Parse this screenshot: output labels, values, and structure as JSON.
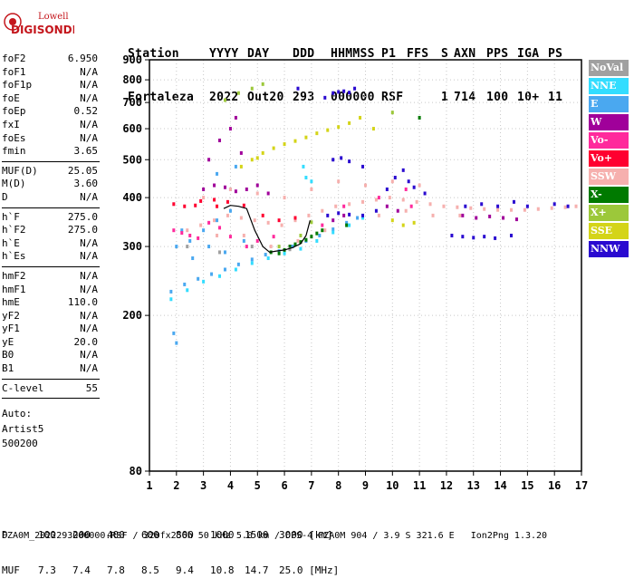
{
  "logo": {
    "line1": "Lowell",
    "line2": "DIGISONDE"
  },
  "header": {
    "labels": [
      "Station",
      "YYYY",
      "DAY",
      "DDD",
      "HHMMSS",
      "P1",
      "FFS",
      "S",
      "AXN",
      "PPS",
      "IGA",
      "PS"
    ],
    "values": [
      "Fortaleza",
      "2022",
      "Out20",
      "293",
      "000000",
      "RSF",
      "",
      "1",
      "714",
      "100",
      "10+",
      "11"
    ]
  },
  "params": [
    {
      "name": "foF2",
      "value": "6.950"
    },
    {
      "name": "foF1",
      "value": "N/A"
    },
    {
      "name": "foF1p",
      "value": "N/A"
    },
    {
      "name": "foE",
      "value": "N/A"
    },
    {
      "name": "foEp",
      "value": "0.52"
    },
    {
      "name": "fxI",
      "value": "N/A"
    },
    {
      "name": "foEs",
      "value": "N/A"
    },
    {
      "name": "fmin",
      "value": "3.65"
    },
    {
      "name": "MUF(D)",
      "value": "25.05"
    },
    {
      "name": "M(D)",
      "value": "3.60"
    },
    {
      "name": "D",
      "value": "N/A"
    },
    {
      "name": "h`F",
      "value": "275.0"
    },
    {
      "name": "h`F2",
      "value": "275.0"
    },
    {
      "name": "h`E",
      "value": "N/A"
    },
    {
      "name": "h`Es",
      "value": "N/A"
    },
    {
      "name": "hmF2",
      "value": "N/A"
    },
    {
      "name": "hmF1",
      "value": "N/A"
    },
    {
      "name": "hmE",
      "value": "110.0"
    },
    {
      "name": "yF2",
      "value": "N/A"
    },
    {
      "name": "yF1",
      "value": "N/A"
    },
    {
      "name": "yE",
      "value": "20.0"
    },
    {
      "name": "B0",
      "value": "N/A"
    },
    {
      "name": "B1",
      "value": "N/A"
    },
    {
      "name": "C-level",
      "value": "55"
    }
  ],
  "auto": {
    "line1": "Auto:",
    "line2": "Artist5",
    "line3": "500200"
  },
  "legend": [
    {
      "label": "NoVal",
      "color": "#a0a0a0"
    },
    {
      "label": "NNE",
      "color": "#33ddff"
    },
    {
      "label": "E",
      "color": "#4aa8f0"
    },
    {
      "label": "W",
      "color": "#a0009a"
    },
    {
      "label": "Vo-",
      "color": "#ff2a9c"
    },
    {
      "label": "Vo+",
      "color": "#ff0030"
    },
    {
      "label": "SSW",
      "color": "#f6b0ae"
    },
    {
      "label": "X-",
      "color": "#007a00"
    },
    {
      "label": "X+",
      "color": "#9cc83a"
    },
    {
      "label": "SSE",
      "color": "#d4d418"
    },
    {
      "label": "NNW",
      "color": "#2a0ad0"
    }
  ],
  "freq_table": {
    "row1_label": "D",
    "row1": [
      "100",
      "200",
      "400",
      "600",
      "800",
      "1000",
      "1500",
      "3000 [km]"
    ],
    "row2_label": "MUF",
    "row2": [
      "7.3",
      "7.4",
      "7.8",
      "8.5",
      "9.4",
      "10.8",
      "14.7",
      "25.0 [MHz]"
    ]
  },
  "footer": "FZA0M_2022293000000.RSF / 320fx256h 50 kHz 5.0 km / DPS-4 FZA0M 904 / 3.9 S 321.6 E   Ion2Png 1.3.20",
  "chart_data": {
    "type": "scatter",
    "xlabel": "",
    "ylabel": "",
    "xlim": [
      1,
      17
    ],
    "ylim": [
      80,
      900
    ],
    "yscale": "log",
    "x_ticks": [
      1,
      2,
      3,
      4,
      5,
      6,
      7,
      8,
      9,
      10,
      11,
      12,
      13,
      14,
      15,
      16,
      17
    ],
    "y_ticks": [
      80,
      200,
      300,
      400,
      500,
      600,
      700,
      800,
      900
    ],
    "grid": true,
    "legend_position": "right",
    "series": [
      {
        "name": "E",
        "color": "#4aa8f0",
        "points": [
          [
            1.8,
            230
          ],
          [
            2.3,
            240
          ],
          [
            2.8,
            248
          ],
          [
            3.3,
            255
          ],
          [
            3.8,
            262
          ],
          [
            4.3,
            270
          ],
          [
            4.8,
            278
          ],
          [
            5.3,
            286
          ],
          [
            5.8,
            292
          ],
          [
            6.3,
            300
          ],
          [
            6.8,
            310
          ],
          [
            7.3,
            320
          ],
          [
            7.8,
            332
          ],
          [
            8.3,
            345
          ],
          [
            8.7,
            355
          ],
          [
            2.0,
            300
          ],
          [
            2.5,
            310
          ],
          [
            3.0,
            330
          ],
          [
            3.5,
            350
          ],
          [
            4.0,
            370
          ],
          [
            2.2,
            330
          ],
          [
            2.6,
            280
          ],
          [
            3.2,
            300
          ],
          [
            3.8,
            290
          ],
          [
            4.5,
            310
          ],
          [
            1.9,
            180
          ],
          [
            2.0,
            170
          ],
          [
            3.5,
            460
          ],
          [
            4.0,
            420
          ],
          [
            4.2,
            480
          ]
        ]
      },
      {
        "name": "NNE",
        "color": "#33ddff",
        "points": [
          [
            1.8,
            220
          ],
          [
            2.4,
            232
          ],
          [
            3.0,
            244
          ],
          [
            3.6,
            252
          ],
          [
            4.2,
            262
          ],
          [
            4.8,
            272
          ],
          [
            5.4,
            280
          ],
          [
            6.0,
            288
          ],
          [
            6.6,
            296
          ],
          [
            7.2,
            310
          ],
          [
            7.8,
            326
          ],
          [
            8.4,
            340
          ],
          [
            8.9,
            355
          ],
          [
            6.8,
            450
          ],
          [
            7.0,
            440
          ],
          [
            6.7,
            480
          ]
        ]
      },
      {
        "name": "SSW",
        "color": "#f6b0ae",
        "points": [
          [
            2.4,
            330
          ],
          [
            2.9,
            340
          ],
          [
            3.4,
            350
          ],
          [
            3.9,
            360
          ],
          [
            4.4,
            355
          ],
          [
            4.9,
            350
          ],
          [
            5.4,
            345
          ],
          [
            5.9,
            340
          ],
          [
            6.4,
            350
          ],
          [
            6.9,
            360
          ],
          [
            7.4,
            370
          ],
          [
            7.9,
            380
          ],
          [
            8.4,
            385
          ],
          [
            8.9,
            390
          ],
          [
            9.4,
            395
          ],
          [
            9.9,
            400
          ],
          [
            10.4,
            395
          ],
          [
            10.9,
            390
          ],
          [
            11.4,
            385
          ],
          [
            11.9,
            380
          ],
          [
            12.4,
            378
          ],
          [
            12.9,
            376
          ],
          [
            13.4,
            374
          ],
          [
            13.9,
            372
          ],
          [
            14.4,
            372
          ],
          [
            14.9,
            372
          ],
          [
            15.4,
            374
          ],
          [
            15.9,
            376
          ],
          [
            16.4,
            378
          ],
          [
            16.8,
            380
          ],
          [
            3.0,
            400
          ],
          [
            4.0,
            420
          ],
          [
            5.0,
            410
          ],
          [
            6.0,
            400
          ],
          [
            7.0,
            420
          ],
          [
            8.0,
            440
          ],
          [
            9.0,
            430
          ],
          [
            10.0,
            440
          ],
          [
            11.0,
            430
          ],
          [
            3.5,
            320
          ],
          [
            4.5,
            320
          ],
          [
            5.5,
            300
          ],
          [
            6.5,
            310
          ],
          [
            7.5,
            330
          ],
          [
            9.5,
            360
          ],
          [
            10.5,
            370
          ],
          [
            11.5,
            360
          ],
          [
            12.5,
            360
          ]
        ]
      },
      {
        "name": "W",
        "color": "#a0009a",
        "points": [
          [
            3.0,
            420
          ],
          [
            3.4,
            430
          ],
          [
            3.8,
            425
          ],
          [
            4.2,
            415
          ],
          [
            4.6,
            420
          ],
          [
            5.0,
            430
          ],
          [
            5.4,
            410
          ],
          [
            3.2,
            500
          ],
          [
            3.6,
            560
          ],
          [
            4.0,
            600
          ],
          [
            4.2,
            640
          ],
          [
            4.4,
            520
          ],
          [
            12.6,
            360
          ],
          [
            13.1,
            355
          ],
          [
            13.6,
            358
          ],
          [
            14.1,
            355
          ],
          [
            14.6,
            352
          ],
          [
            7.8,
            350
          ],
          [
            8.2,
            360
          ],
          [
            9.8,
            380
          ],
          [
            10.2,
            370
          ]
        ]
      },
      {
        "name": "Vo-",
        "color": "#ff2a9c",
        "points": [
          [
            1.9,
            330
          ],
          [
            2.2,
            325
          ],
          [
            2.5,
            320
          ],
          [
            2.8,
            315
          ],
          [
            3.2,
            345
          ],
          [
            3.6,
            335
          ],
          [
            4.0,
            318
          ],
          [
            4.6,
            300
          ],
          [
            5.0,
            310
          ],
          [
            5.6,
            318
          ],
          [
            6.2,
            300
          ],
          [
            7.4,
            340
          ],
          [
            8.2,
            380
          ],
          [
            9.5,
            400
          ],
          [
            10.5,
            420
          ],
          [
            10.7,
            380
          ]
        ]
      },
      {
        "name": "Vo+",
        "color": "#ff0030",
        "points": [
          [
            1.9,
            385
          ],
          [
            2.3,
            380
          ],
          [
            2.7,
            382
          ],
          [
            3.5,
            380
          ],
          [
            3.9,
            390
          ],
          [
            4.5,
            382
          ],
          [
            5.2,
            360
          ],
          [
            5.8,
            350
          ],
          [
            6.4,
            355
          ],
          [
            3.4,
            395
          ],
          [
            2.9,
            392
          ]
        ]
      },
      {
        "name": "X-",
        "color": "#007a00",
        "points": [
          [
            5.5,
            290
          ],
          [
            5.8,
            288
          ],
          [
            6.0,
            294
          ],
          [
            6.2,
            300
          ],
          [
            6.4,
            304
          ],
          [
            6.6,
            308
          ],
          [
            6.8,
            312
          ],
          [
            7.0,
            318
          ],
          [
            7.2,
            324
          ],
          [
            7.4,
            330
          ],
          [
            8.3,
            340
          ],
          [
            11.0,
            640
          ]
        ]
      },
      {
        "name": "X+",
        "color": "#9cc83a",
        "points": [
          [
            3.8,
            710
          ],
          [
            4.3,
            740
          ],
          [
            4.8,
            760
          ],
          [
            5.2,
            780
          ],
          [
            5.8,
            300
          ],
          [
            6.6,
            320
          ],
          [
            7.0,
            346
          ],
          [
            10.0,
            660
          ]
        ]
      },
      {
        "name": "SSE",
        "color": "#d4d418",
        "points": [
          [
            4.4,
            480
          ],
          [
            4.8,
            500
          ],
          [
            5.2,
            520
          ],
          [
            5.6,
            535
          ],
          [
            6.0,
            548
          ],
          [
            6.4,
            558
          ],
          [
            6.8,
            570
          ],
          [
            7.2,
            584
          ],
          [
            7.6,
            595
          ],
          [
            8.0,
            606
          ],
          [
            8.4,
            620
          ],
          [
            8.8,
            640
          ],
          [
            10.0,
            350
          ],
          [
            10.4,
            340
          ],
          [
            10.8,
            345
          ],
          [
            9.3,
            600
          ],
          [
            5.0,
            505
          ]
        ]
      },
      {
        "name": "NNW",
        "color": "#2a0ad0",
        "points": [
          [
            7.8,
            740
          ],
          [
            8.0,
            745
          ],
          [
            8.2,
            748
          ],
          [
            8.4,
            742
          ],
          [
            7.8,
            500
          ],
          [
            8.1,
            505
          ],
          [
            8.4,
            495
          ],
          [
            8.9,
            480
          ],
          [
            9.8,
            420
          ],
          [
            10.1,
            450
          ],
          [
            10.4,
            470
          ],
          [
            10.6,
            440
          ],
          [
            10.8,
            425
          ],
          [
            11.2,
            410
          ],
          [
            12.2,
            320
          ],
          [
            12.6,
            318
          ],
          [
            13.0,
            316
          ],
          [
            13.4,
            318
          ],
          [
            13.8,
            315
          ],
          [
            14.4,
            320
          ],
          [
            12.7,
            380
          ],
          [
            13.3,
            385
          ],
          [
            13.9,
            380
          ],
          [
            14.5,
            390
          ],
          [
            15.0,
            380
          ],
          [
            16.0,
            385
          ],
          [
            16.5,
            380
          ],
          [
            7.6,
            360
          ],
          [
            8.0,
            365
          ],
          [
            8.4,
            362
          ],
          [
            8.9,
            360
          ],
          [
            9.4,
            370
          ],
          [
            6.5,
            760
          ],
          [
            7.5,
            720
          ],
          [
            8.6,
            760
          ]
        ]
      },
      {
        "name": "NoVal",
        "color": "#a0a0a0",
        "points": [
          [
            2.4,
            300
          ],
          [
            3.6,
            290
          ],
          [
            4.8,
            300
          ],
          [
            6.2,
            295
          ]
        ]
      }
    ],
    "trace": {
      "color": "#000000",
      "points": [
        [
          3.75,
          375
        ],
        [
          4.0,
          382
        ],
        [
          4.3,
          380
        ],
        [
          4.6,
          375
        ],
        [
          4.9,
          330
        ],
        [
          5.2,
          300
        ],
        [
          5.45,
          290
        ],
        [
          5.7,
          292
        ],
        [
          6.0,
          294
        ],
        [
          6.3,
          298
        ],
        [
          6.6,
          305
        ],
        [
          6.8,
          320
        ],
        [
          6.95,
          350
        ]
      ]
    }
  }
}
